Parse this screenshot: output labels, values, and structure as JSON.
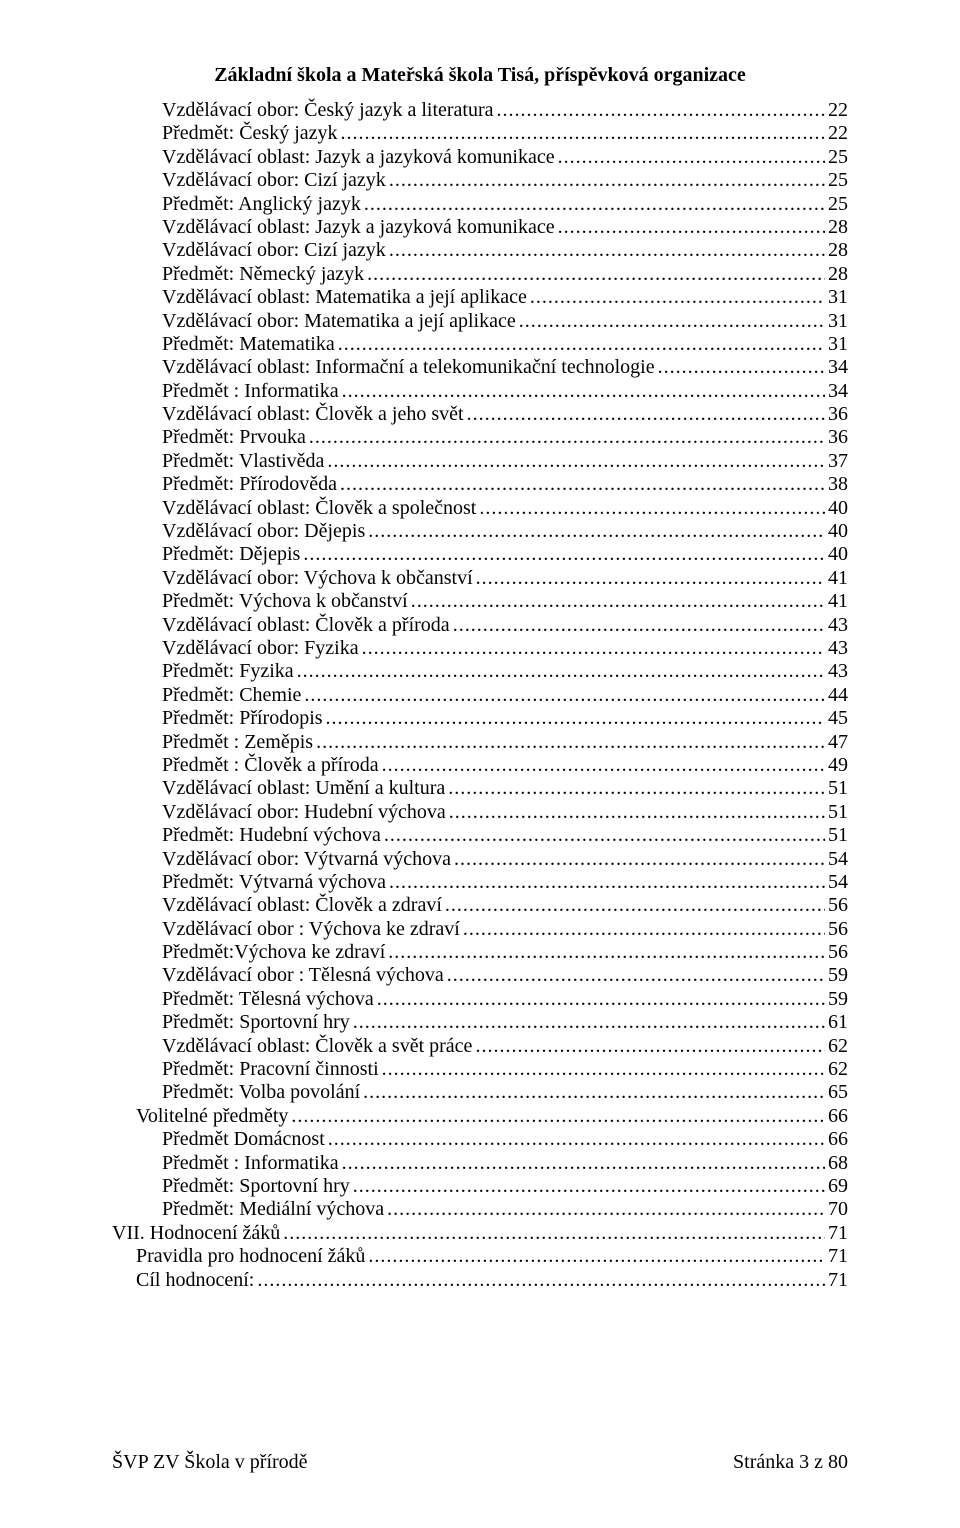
{
  "header": "Základní škola a Mateřská škola Tisá, příspěvková organizace",
  "footer": {
    "left": "ŠVP ZV Škola v přírodě",
    "right": "Stránka 3 z 80"
  },
  "toc": [
    {
      "indent": 2,
      "label": "Vzdělávací obor: Český jazyk a literatura",
      "page": "22"
    },
    {
      "indent": 2,
      "label": "Předmět: Český jazyk",
      "page": "22"
    },
    {
      "indent": 2,
      "label": "Vzdělávací oblast: Jazyk a jazyková komunikace",
      "page": "25"
    },
    {
      "indent": 2,
      "label": "Vzdělávací obor: Cizí jazyk",
      "page": "25"
    },
    {
      "indent": 2,
      "label": "Předmět: Anglický jazyk",
      "page": "25"
    },
    {
      "indent": 2,
      "label": "Vzdělávací oblast: Jazyk a jazyková komunikace",
      "page": "28"
    },
    {
      "indent": 2,
      "label": "Vzdělávací obor: Cizí jazyk",
      "page": "28"
    },
    {
      "indent": 2,
      "label": "Předmět: Německý jazyk",
      "page": "28"
    },
    {
      "indent": 2,
      "label": "Vzdělávací oblast: Matematika a její aplikace",
      "page": "31"
    },
    {
      "indent": 2,
      "label": "Vzdělávací obor: Matematika a její aplikace",
      "page": "31"
    },
    {
      "indent": 2,
      "label": "Předmět: Matematika",
      "page": "31"
    },
    {
      "indent": 2,
      "label": "Vzdělávací oblast: Informační a telekomunikační technologie",
      "page": "34"
    },
    {
      "indent": 2,
      "label": "Předmět : Informatika",
      "page": "34"
    },
    {
      "indent": 2,
      "label": "Vzdělávací oblast: Člověk a jeho svět",
      "page": "36"
    },
    {
      "indent": 2,
      "label": "Předmět: Prvouka",
      "page": "36"
    },
    {
      "indent": 2,
      "label": "Předmět: Vlastivěda",
      "page": "37"
    },
    {
      "indent": 2,
      "label": "Předmět: Přírodověda",
      "page": "38"
    },
    {
      "indent": 2,
      "label": "Vzdělávací oblast: Člověk a společnost",
      "page": "40"
    },
    {
      "indent": 2,
      "label": "Vzdělávací obor: Dějepis",
      "page": "40"
    },
    {
      "indent": 2,
      "label": "Předmět: Dějepis",
      "page": "40"
    },
    {
      "indent": 2,
      "label": "Vzdělávací obor: Výchova k občanství",
      "page": "41"
    },
    {
      "indent": 2,
      "label": "Předmět: Výchova k občanství",
      "page": "41"
    },
    {
      "indent": 2,
      "label": "Vzdělávací oblast: Člověk a příroda",
      "page": "43"
    },
    {
      "indent": 2,
      "label": "Vzdělávací obor: Fyzika",
      "page": "43"
    },
    {
      "indent": 2,
      "label": "Předmět: Fyzika",
      "page": "43"
    },
    {
      "indent": 2,
      "label": "Předmět: Chemie",
      "page": "44"
    },
    {
      "indent": 2,
      "label": "Předmět: Přírodopis",
      "page": "45"
    },
    {
      "indent": 2,
      "label": "Předmět : Zeměpis",
      "page": "47"
    },
    {
      "indent": 2,
      "label": "Předmět : Člověk a příroda",
      "page": "49"
    },
    {
      "indent": 2,
      "label": "Vzdělávací oblast: Umění a kultura",
      "page": "51"
    },
    {
      "indent": 2,
      "label": "Vzdělávací obor: Hudební výchova",
      "page": "51"
    },
    {
      "indent": 2,
      "label": "Předmět: Hudební výchova",
      "page": "51"
    },
    {
      "indent": 2,
      "label": "Vzdělávací obor: Výtvarná výchova",
      "page": "54"
    },
    {
      "indent": 2,
      "label": "Předmět: Výtvarná výchova",
      "page": "54"
    },
    {
      "indent": 2,
      "label": "Vzdělávací oblast: Člověk a zdraví",
      "page": "56"
    },
    {
      "indent": 2,
      "label": "Vzdělávací obor : Výchova ke zdraví",
      "page": "56"
    },
    {
      "indent": 2,
      "label": "Předmět:Výchova ke zdraví",
      "page": "56"
    },
    {
      "indent": 2,
      "label": "Vzdělávací obor : Tělesná výchova",
      "page": "59"
    },
    {
      "indent": 2,
      "label": "Předmět: Tělesná výchova",
      "page": "59"
    },
    {
      "indent": 2,
      "label": "Předmět: Sportovní hry",
      "page": "61"
    },
    {
      "indent": 2,
      "label": "Vzdělávací oblast: Člověk a svět práce",
      "page": "62"
    },
    {
      "indent": 2,
      "label": "Předmět: Pracovní činnosti",
      "page": "62"
    },
    {
      "indent": 2,
      "label": "Předmět: Volba povolání",
      "page": "65"
    },
    {
      "indent": 1,
      "label": "Volitelné předměty",
      "page": "66"
    },
    {
      "indent": 2,
      "label": "Předmět Domácnost",
      "page": "66"
    },
    {
      "indent": 2,
      "label": "Předmět : Informatika",
      "page": "68"
    },
    {
      "indent": 2,
      "label": "Předmět: Sportovní hry",
      "page": "69"
    },
    {
      "indent": 2,
      "label": "Předmět: Mediální výchova",
      "page": "70"
    },
    {
      "indent": 0,
      "label": "VII. Hodnocení žáků",
      "page": "71"
    },
    {
      "indent": 1,
      "label": "Pravidla pro hodnocení žáků",
      "page": "71"
    },
    {
      "indent": 1,
      "label": "Cíl hodnocení:",
      "page": "71"
    }
  ]
}
